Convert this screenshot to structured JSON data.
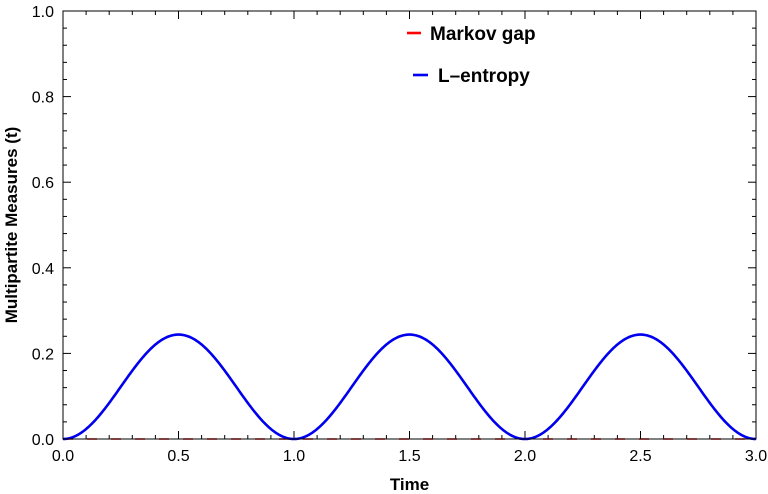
{
  "chart_data": {
    "type": "line",
    "xlabel": "Time",
    "ylabel": "Multipartite Measures (t)",
    "xlim": [
      0,
      3
    ],
    "ylim": [
      0,
      1
    ],
    "xticks": [
      0,
      0.5,
      1,
      1.5,
      2,
      2.5,
      3
    ],
    "xtick_labels": [
      "0.0",
      "0.5",
      "1.0",
      "1.5",
      "2.0",
      "2.5",
      "3.0"
    ],
    "yticks": [
      0,
      0.2,
      0.4,
      0.6,
      0.8,
      1
    ],
    "ytick_labels": [
      "0.0",
      "0.2",
      "0.4",
      "0.6",
      "0.8",
      "1.0"
    ],
    "grid": false,
    "legend_position": "top-center",
    "series": [
      {
        "name": "Markov gap",
        "color": "#ff0000",
        "style": "dashed",
        "x": [
          0,
          0.5,
          1,
          1.5,
          2,
          2.5,
          3
        ],
        "y": [
          0,
          0,
          0,
          0,
          0,
          0,
          0
        ]
      },
      {
        "name": "L–entropy",
        "color": "#0000ee",
        "style": "solid",
        "x": [
          0,
          0.1,
          0.2,
          0.3,
          0.4,
          0.5,
          0.6,
          0.7,
          0.8,
          0.9,
          1.0,
          1.1,
          1.2,
          1.3,
          1.4,
          1.5,
          1.6,
          1.7,
          1.8,
          1.9,
          2.0,
          2.1,
          2.2,
          2.3,
          2.4,
          2.5,
          2.6,
          2.7,
          2.8,
          2.9,
          3.0
        ],
        "y": [
          0,
          0.023,
          0.084,
          0.16,
          0.221,
          0.244,
          0.221,
          0.16,
          0.084,
          0.023,
          0,
          0.023,
          0.084,
          0.16,
          0.221,
          0.244,
          0.221,
          0.16,
          0.084,
          0.023,
          0,
          0.023,
          0.084,
          0.16,
          0.221,
          0.244,
          0.221,
          0.16,
          0.084,
          0.023,
          0
        ]
      }
    ]
  }
}
